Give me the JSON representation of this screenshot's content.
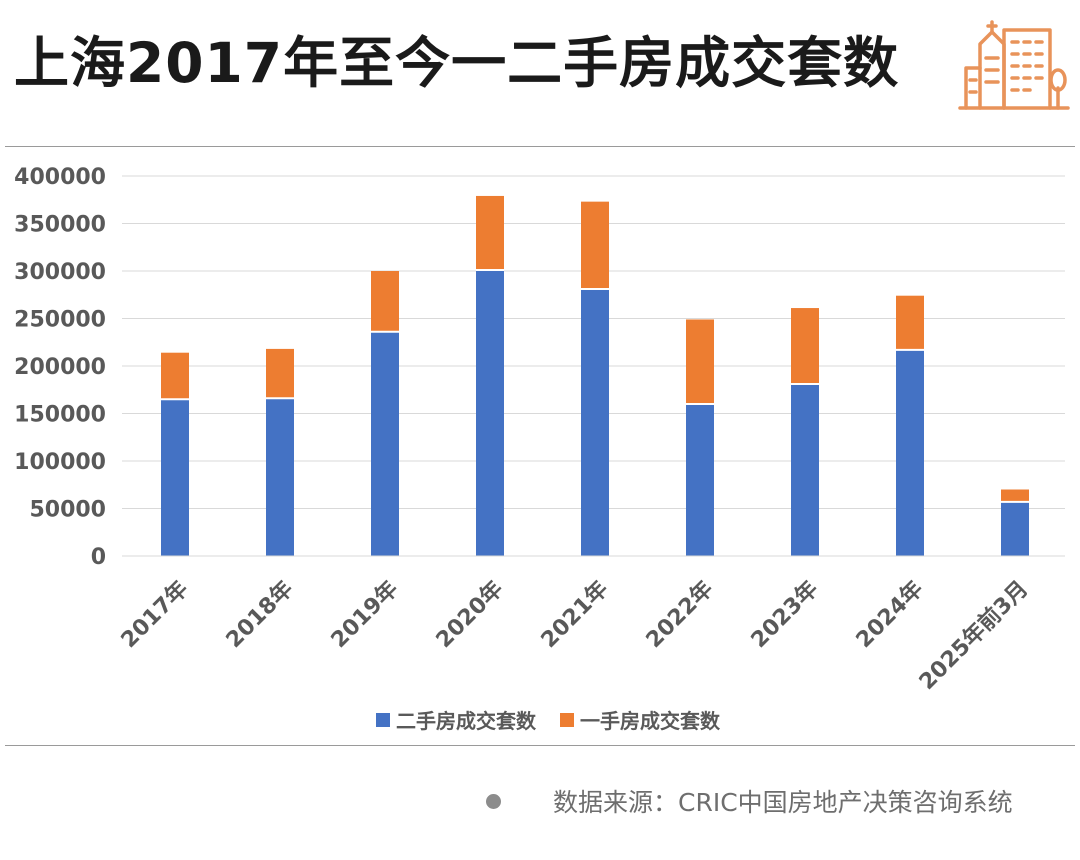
{
  "header": {
    "title": "上海2017年至今一二手房成交套数",
    "icon": "city-buildings-icon"
  },
  "source": {
    "text": "数据来源：CRIC中国房地产决策咨询系统"
  },
  "colors": {
    "second_hand": "#4472c4",
    "first_hand": "#ed7d31",
    "grid": "#d9d9d9",
    "axis_text": "#595959",
    "icon": "#e8935a"
  },
  "chart_data": {
    "type": "bar",
    "stacked": true,
    "categories": [
      "2017年",
      "2018年",
      "2019年",
      "2020年",
      "2021年",
      "2022年",
      "2023年",
      "2024年",
      "2025年前3月"
    ],
    "series": [
      {
        "name": "二手房成交套数",
        "values": [
          165000,
          166000,
          236000,
          301000,
          281000,
          160000,
          181000,
          217000,
          57000
        ]
      },
      {
        "name": "一手房成交套数",
        "values": [
          49000,
          52000,
          64000,
          78000,
          92000,
          89000,
          80000,
          57000,
          13000
        ]
      }
    ],
    "yticks": [
      "0",
      "50000",
      "100000",
      "150000",
      "200000",
      "250000",
      "300000",
      "350000",
      "400000"
    ],
    "ylim": [
      0,
      400000
    ],
    "grid": true,
    "legend_position": "bottom"
  }
}
